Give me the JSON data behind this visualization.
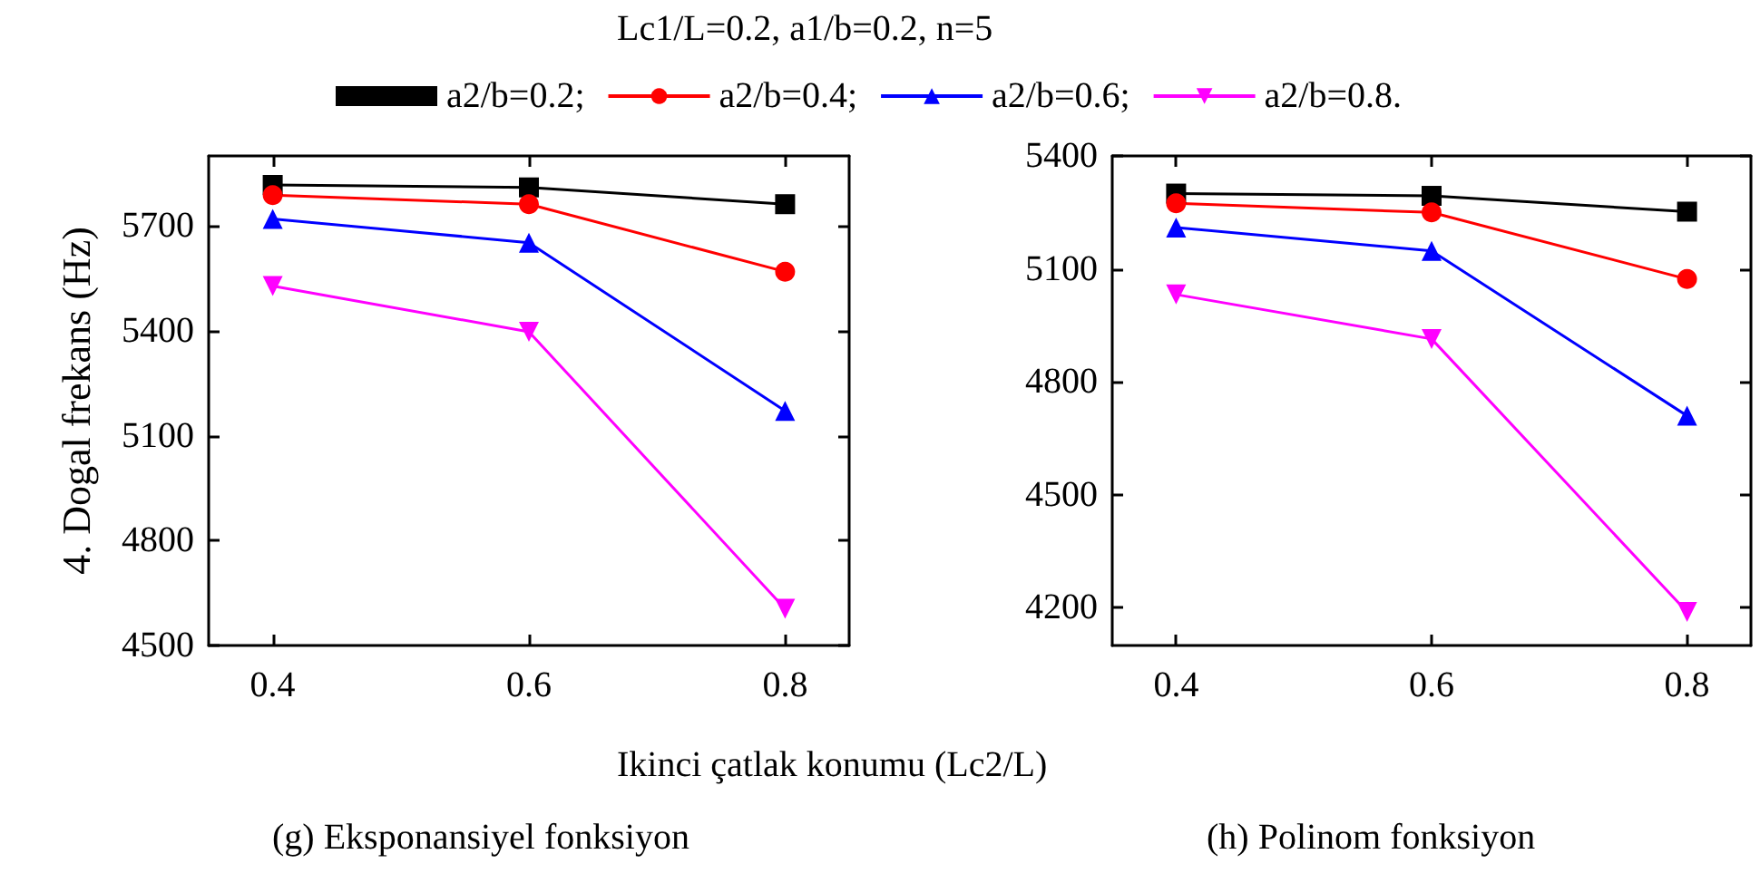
{
  "chart_data": [
    {
      "type": "line",
      "title": "(g) Eksponansiyel fonksiyon",
      "ylabel": "4. Dogal frekans (Hz)",
      "xlabel": "Ikinci çatlak konumu (Lc2/L)",
      "annotations": [
        "Lc1/L=0.2, a1/b=0.2, n=5"
      ],
      "x": [
        0.4,
        0.6,
        0.8
      ],
      "xlim": [
        0.35,
        0.85
      ],
      "xticks": [
        0.4,
        0.6,
        0.8
      ],
      "ylim": [
        4500,
        5900
      ],
      "yticks": [
        4500,
        4800,
        5100,
        5400,
        5700
      ],
      "legend": "top",
      "grid": false,
      "line_style": "solid",
      "series": [
        {
          "name": "a2/b=0.2;",
          "color": "#000000",
          "marker": "square",
          "values": [
            5817,
            5810,
            5762
          ]
        },
        {
          "name": "a2/b=0.4;",
          "color": "#ff0000",
          "marker": "circle",
          "values": [
            5788,
            5762,
            5569
          ]
        },
        {
          "name": "a2/b=0.6;",
          "color": "#0000ff",
          "marker": "triangle",
          "values": [
            5720,
            5652,
            5171
          ]
        },
        {
          "name": "a2/b=0.8.",
          "color": "#ff00ff",
          "marker": "triangle_down",
          "values": [
            5528,
            5397,
            4605
          ]
        }
      ]
    },
    {
      "type": "line",
      "title": "(h) Polinom fonksiyon",
      "x": [
        0.4,
        0.6,
        0.8
      ],
      "xlim": [
        0.35,
        0.85
      ],
      "xticks": [
        0.4,
        0.6,
        0.8
      ],
      "ylim": [
        4100,
        5400
      ],
      "yticks": [
        4200,
        4500,
        4800,
        5100,
        5400
      ],
      "legend": false,
      "grid": false,
      "line_style": "solid",
      "series": [
        {
          "color": "#000000",
          "marker": "square",
          "values": [
            5300,
            5294,
            5252
          ]
        },
        {
          "color": "#ff0000",
          "marker": "circle",
          "values": [
            5274,
            5250,
            5073
          ]
        },
        {
          "color": "#0000ff",
          "marker": "triangle",
          "values": [
            5210,
            5148,
            4710
          ]
        },
        {
          "color": "#ff00ff",
          "marker": "triangle_down",
          "values": [
            5032,
            4914,
            4189
          ]
        }
      ]
    }
  ]
}
